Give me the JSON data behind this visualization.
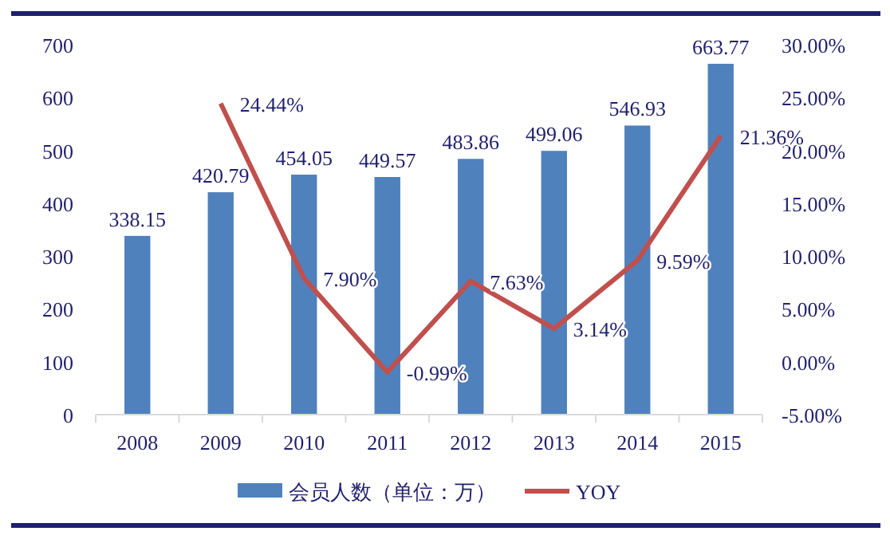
{
  "chart_data": {
    "type": "bar",
    "categories": [
      "2008",
      "2009",
      "2010",
      "2011",
      "2012",
      "2013",
      "2014",
      "2015"
    ],
    "series": [
      {
        "name": "会员人数（单位：万）",
        "color": "#4f81bd",
        "values": [
          338.15,
          420.79,
          454.05,
          449.57,
          483.86,
          499.06,
          546.93,
          663.77
        ],
        "value_labels": [
          "338.15",
          "420.79",
          "454.05",
          "449.57",
          "483.86",
          "499.06",
          "546.93",
          "663.77"
        ]
      },
      {
        "name": "YOY",
        "type": "line",
        "axis": "y2",
        "color": "#c0504d",
        "values": [
          null,
          24.44,
          7.9,
          -0.99,
          7.63,
          3.14,
          9.59,
          21.36
        ],
        "value_labels": [
          null,
          "24.44%",
          "7.90%",
          "-0.99%",
          "7.63%",
          "3.14%",
          "9.59%",
          "21.36%"
        ]
      }
    ],
    "ylim": [
      0,
      700
    ],
    "yticks": [
      0,
      100,
      200,
      300,
      400,
      500,
      600,
      700
    ],
    "y2lim": [
      -5,
      30
    ],
    "y2ticks": [
      {
        "value": -5,
        "label": "-5.00%"
      },
      {
        "value": 0,
        "label": "0.00%"
      },
      {
        "value": 5,
        "label": "5.00%"
      },
      {
        "value": 10,
        "label": "10.00%"
      },
      {
        "value": 15,
        "label": "15.00%"
      },
      {
        "value": 20,
        "label": "20.00%"
      },
      {
        "value": 25,
        "label": "25.00%"
      },
      {
        "value": 30,
        "label": "30.00%"
      }
    ],
    "legend": "bottom",
    "grid": false,
    "marker": "none"
  }
}
